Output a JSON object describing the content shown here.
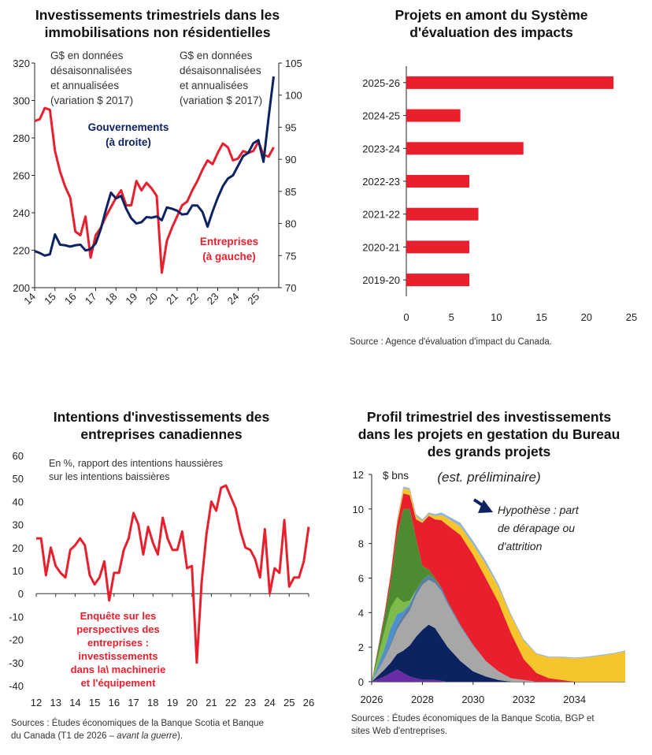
{
  "charts": {
    "c1": {
      "title_l1": "Investissements trimestriels dans les",
      "title_l2": "immobilisations non résidentielles",
      "note_left": [
        "G$ en données",
        "désaisonnalisées",
        "et annualisées",
        "(variation $ 2017)"
      ],
      "note_right": [
        "G$ en données",
        "désaisonnalisées",
        "et annualisées",
        "(variation $ 2017)"
      ],
      "label_gov": [
        "Gouvernements",
        "(à droite)"
      ],
      "label_ent": [
        "Entreprises",
        "(à gauche)"
      ]
    },
    "c2": {
      "title_l1": "Projets en amont du Système",
      "title_l2": "d'évaluation des impacts",
      "source": "Source : Agence d'évaluation d'impact du Canada."
    },
    "c3": {
      "title_l1": "Intentions d'investissements des",
      "title_l2": "entreprises canadiennes",
      "note": [
        "En %, rapport des intentions haussières",
        "sur les intentions baissières"
      ],
      "label": [
        "Enquête sur les",
        "perspectives des",
        "entreprises :",
        "investissements",
        "dans la\\ machinerie",
        "et l'équipement"
      ],
      "source_l1": "Sources : Études économiques de la Banque Scotia et Banque",
      "source_l2a": "du Canada (T1 de 2026 – ",
      "source_l2b": "avant la guerre",
      "source_l2c": ")."
    },
    "c4": {
      "title_l1": "Profil trimestriel des investissements",
      "title_l2": "dans les projets en gestation du Bureau",
      "title_l3": "des grands projets",
      "subtitle": "(est. préliminaire)",
      "unit": "$ bns",
      "annotation": [
        "Hypothèse : part",
        "de dérapage ou",
        "d'attrition"
      ],
      "source_l1": "Sources : Études économiques de la Banque Scotia, BGP et",
      "source_l2": "sites Web d'entreprises."
    }
  },
  "colors": {
    "red": "#e8202e",
    "navy": "#0d2361",
    "green": "#4d8b31",
    "light_green": "#7dbb4a",
    "gray": "#a7a7a7",
    "yellow": "#f6c42b",
    "blue": "#4e8fd0",
    "purple": "#6a2ca5",
    "steel": "#5b7fa0"
  },
  "chart_data": [
    {
      "type": "line",
      "x_ticks": [
        "14",
        "15",
        "16",
        "17",
        "18",
        "19",
        "20",
        "21",
        "22",
        "23",
        "24",
        "25"
      ],
      "y_left": {
        "min": 200,
        "max": 320,
        "ticks": [
          200,
          220,
          240,
          260,
          280,
          300,
          320
        ]
      },
      "y_right": {
        "min": 70,
        "max": 105,
        "ticks": [
          70,
          75,
          80,
          85,
          90,
          95,
          100,
          105
        ]
      },
      "x_range": [
        2014.0,
        2026.0
      ],
      "series": [
        {
          "name": "Entreprises (à gauche)",
          "axis": "left",
          "color": "#e8202e",
          "x": [
            2014.0,
            2014.25,
            2014.5,
            2014.75,
            2015.0,
            2015.25,
            2015.5,
            2015.75,
            2016.0,
            2016.25,
            2016.5,
            2016.75,
            2017.0,
            2017.25,
            2017.5,
            2017.75,
            2018.0,
            2018.25,
            2018.5,
            2018.75,
            2019.0,
            2019.25,
            2019.5,
            2019.75,
            2020.0,
            2020.25,
            2020.5,
            2020.75,
            2021.0,
            2021.25,
            2021.5,
            2021.75,
            2022.0,
            2022.25,
            2022.5,
            2022.75,
            2023.0,
            2023.25,
            2023.5,
            2023.75,
            2024.0,
            2024.25,
            2024.5,
            2024.75,
            2025.0,
            2025.25,
            2025.5,
            2025.75
          ],
          "y": [
            289,
            290,
            296,
            295,
            273,
            262,
            254,
            248,
            230,
            228,
            238,
            216,
            228,
            232,
            238,
            243,
            248,
            252,
            244,
            244,
            257,
            252,
            256,
            253,
            249,
            208,
            225,
            232,
            238,
            244,
            246,
            252,
            257,
            263,
            268,
            266,
            272,
            277,
            275,
            268,
            269,
            273,
            272,
            273,
            278,
            271,
            270,
            275
          ]
        },
        {
          "name": "Gouvernements (à droite)",
          "axis": "right",
          "color": "#0d2361",
          "x": [
            2014.0,
            2014.25,
            2014.5,
            2014.75,
            2015.0,
            2015.25,
            2015.5,
            2015.75,
            2016.0,
            2016.25,
            2016.5,
            2016.75,
            2017.0,
            2017.25,
            2017.5,
            2017.75,
            2018.0,
            2018.25,
            2018.5,
            2018.75,
            2019.0,
            2019.25,
            2019.5,
            2019.75,
            2020.0,
            2020.25,
            2020.5,
            2020.75,
            2021.0,
            2021.25,
            2021.5,
            2021.75,
            2022.0,
            2022.25,
            2022.5,
            2022.75,
            2023.0,
            2023.25,
            2023.5,
            2023.75,
            2024.0,
            2024.25,
            2024.5,
            2024.75,
            2025.0,
            2025.25,
            2025.5,
            2025.75
          ],
          "y": [
            75.7,
            75.4,
            75.0,
            75.2,
            78.3,
            76.7,
            76.6,
            76.4,
            76.6,
            76.7,
            75.8,
            76.0,
            76.9,
            79.1,
            82.1,
            84.8,
            83.9,
            84.3,
            82.3,
            80.8,
            80.0,
            80.2,
            81.0,
            80.9,
            81.1,
            80.5,
            82.5,
            82.3,
            82.0,
            81.4,
            81.5,
            82.8,
            82.8,
            81.8,
            79.5,
            81.9,
            84.0,
            85.8,
            87.0,
            87.5,
            89.0,
            90.5,
            91.0,
            92.5,
            93.0,
            89.6,
            96.5,
            102.9
          ]
        }
      ]
    },
    {
      "type": "bar",
      "orientation": "horizontal",
      "categories": [
        "2025-26",
        "2024-25",
        "2023-24",
        "2022-23",
        "2021-22",
        "2020-21",
        "2019-20"
      ],
      "values": [
        23,
        6,
        13,
        7,
        8,
        7,
        7
      ],
      "xlim": [
        0,
        25
      ],
      "x_ticks": [
        0,
        5,
        10,
        15,
        20,
        25
      ],
      "color": "#e8202e"
    },
    {
      "type": "line",
      "x_ticks": [
        "12",
        "13",
        "14",
        "15",
        "16",
        "17",
        "18",
        "19",
        "20",
        "21",
        "22",
        "23",
        "24",
        "25",
        "26"
      ],
      "x_range": [
        2012.0,
        2026.0
      ],
      "ylim": [
        -40,
        60
      ],
      "y_ticks": [
        -40,
        -30,
        -20,
        -10,
        0,
        10,
        20,
        30,
        40,
        50,
        60
      ],
      "series": [
        {
          "name": "Enquête sur les perspectives des entreprises : investissements dans la\\ machinerie et l'équipement",
          "color": "#e8202e",
          "x": [
            2012.0,
            2012.25,
            2012.5,
            2012.75,
            2013.0,
            2013.25,
            2013.5,
            2013.75,
            2014.0,
            2014.25,
            2014.5,
            2014.75,
            2015.0,
            2015.25,
            2015.5,
            2015.75,
            2016.0,
            2016.25,
            2016.5,
            2016.75,
            2017.0,
            2017.25,
            2017.5,
            2017.75,
            2018.0,
            2018.25,
            2018.5,
            2018.75,
            2019.0,
            2019.25,
            2019.5,
            2019.75,
            2020.0,
            2020.25,
            2020.5,
            2020.75,
            2021.0,
            2021.25,
            2021.5,
            2021.75,
            2022.0,
            2022.25,
            2022.5,
            2022.75,
            2023.0,
            2023.25,
            2023.5,
            2023.75,
            2024.0,
            2024.25,
            2024.5,
            2024.75,
            2025.0,
            2025.25,
            2025.5,
            2025.75,
            2026.0
          ],
          "y": [
            24,
            24,
            8,
            20,
            12,
            9,
            7,
            19,
            21,
            24,
            21,
            8,
            4,
            7,
            14,
            -3,
            9,
            9,
            19,
            24,
            35,
            30,
            17,
            29,
            22,
            17,
            33,
            24,
            19,
            19,
            27,
            11,
            12,
            -30,
            5,
            26,
            40,
            36,
            46,
            47,
            42,
            37,
            27,
            20,
            19,
            15,
            7,
            28,
            0,
            11,
            9,
            32,
            3,
            7,
            7,
            14,
            29
          ]
        }
      ]
    },
    {
      "type": "area",
      "stacked": true,
      "ylabel": "$ bns",
      "ylim": [
        0,
        12
      ],
      "y_ticks": [
        0,
        2,
        4,
        6,
        8,
        10,
        12
      ],
      "x_ticks": [
        2026,
        2028,
        2030,
        2032,
        2034
      ],
      "x_range": [
        2026.0,
        2036.0
      ],
      "x": [
        2026.0,
        2026.5,
        2026.75,
        2027.0,
        2027.25,
        2027.5,
        2027.75,
        2028.0,
        2028.25,
        2028.5,
        2028.75,
        2029.0,
        2029.5,
        2030.0,
        2030.5,
        2031.0,
        2031.5,
        2032.0,
        2032.5,
        2033.0,
        2033.5,
        2034.0,
        2034.5,
        2035.0,
        2035.5,
        2036.0
      ],
      "series": [
        {
          "name": "purple",
          "color": "#6a2ca5",
          "values": [
            0,
            0.3,
            0.5,
            0.7,
            0.5,
            0.3,
            0.2,
            0.1,
            0.1,
            0.1,
            0.05,
            0,
            0,
            0,
            0,
            0,
            0,
            0,
            0,
            0,
            0,
            0,
            0,
            0,
            0,
            0
          ]
        },
        {
          "name": "navy",
          "color": "#0d2361",
          "values": [
            0,
            0.4,
            0.6,
            0.9,
            1.3,
            1.8,
            2.4,
            2.9,
            3.2,
            3.0,
            2.5,
            2.0,
            1.2,
            0.6,
            0.3,
            0.1,
            0,
            0,
            0,
            0,
            0,
            0,
            0,
            0,
            0,
            0
          ]
        },
        {
          "name": "gray",
          "color": "#a7a7a7",
          "values": [
            0,
            0.6,
            1.0,
            1.4,
            1.8,
            2.0,
            2.4,
            2.6,
            2.6,
            2.6,
            2.7,
            2.5,
            2.0,
            1.5,
            0.9,
            0.5,
            0.2,
            0.1,
            0,
            0,
            0,
            0,
            0,
            0,
            0,
            0
          ]
        },
        {
          "name": "steel",
          "color": "#5b7fa0",
          "values": [
            0,
            0.1,
            0.2,
            0.3,
            0.3,
            0.3,
            0.3,
            0.3,
            0.3,
            0.2,
            0.2,
            0.15,
            0.1,
            0.05,
            0,
            0,
            0,
            0,
            0,
            0,
            0,
            0,
            0,
            0,
            0,
            0
          ]
        },
        {
          "name": "blue",
          "color": "#4e8fd0",
          "values": [
            0,
            0.5,
            0.8,
            0.6,
            0.2,
            0.1,
            0,
            0,
            0,
            0,
            0,
            0,
            0,
            0,
            0,
            0,
            0,
            0,
            0,
            0,
            0,
            0,
            0,
            0,
            0,
            0
          ]
        },
        {
          "name": "light_green",
          "color": "#7dbb4a",
          "values": [
            0,
            1.0,
            1.2,
            1.0,
            0.5,
            0.2,
            0,
            0,
            0,
            0,
            0,
            0,
            0,
            0,
            0,
            0,
            0,
            0,
            0,
            0,
            0,
            0,
            0,
            0,
            0,
            0
          ]
        },
        {
          "name": "green",
          "color": "#4d8b31",
          "values": [
            0,
            0.8,
            1.5,
            3.6,
            5.4,
            5.3,
            3.0,
            0.8,
            0.3,
            0.1,
            0,
            0,
            0,
            0,
            0,
            0,
            0,
            0,
            0,
            0,
            0,
            0,
            0,
            0,
            0,
            0
          ]
        },
        {
          "name": "red",
          "color": "#e8202e",
          "values": [
            0,
            0.2,
            0.4,
            0.6,
            0.9,
            0.8,
            1.1,
            2.5,
            3.1,
            3.4,
            3.9,
            4.4,
            5.2,
            5.2,
            4.8,
            4.0,
            2.6,
            1.2,
            0.5,
            0.2,
            0.1,
            0,
            0,
            0,
            0,
            0
          ]
        },
        {
          "name": "yellow",
          "color": "#f6c42b",
          "values": [
            0,
            0,
            0.1,
            0.2,
            0.3,
            0.3,
            0.2,
            0.1,
            0.1,
            0.2,
            0.3,
            0.4,
            0.5,
            0.6,
            0.8,
            0.9,
            1.0,
            1.05,
            1.1,
            1.2,
            1.3,
            1.35,
            1.4,
            1.5,
            1.6,
            1.75
          ]
        },
        {
          "name": "lightblue",
          "color": "#8fb4d8",
          "values": [
            0,
            0,
            0.05,
            0.1,
            0.1,
            0.1,
            0.1,
            0.1,
            0.1,
            0.1,
            0.15,
            0.15,
            0.2,
            0.2,
            0.2,
            0.15,
            0.1,
            0.1,
            0.05,
            0.05,
            0.05,
            0.05,
            0.05,
            0.05,
            0.05,
            0.05
          ]
        }
      ]
    }
  ]
}
